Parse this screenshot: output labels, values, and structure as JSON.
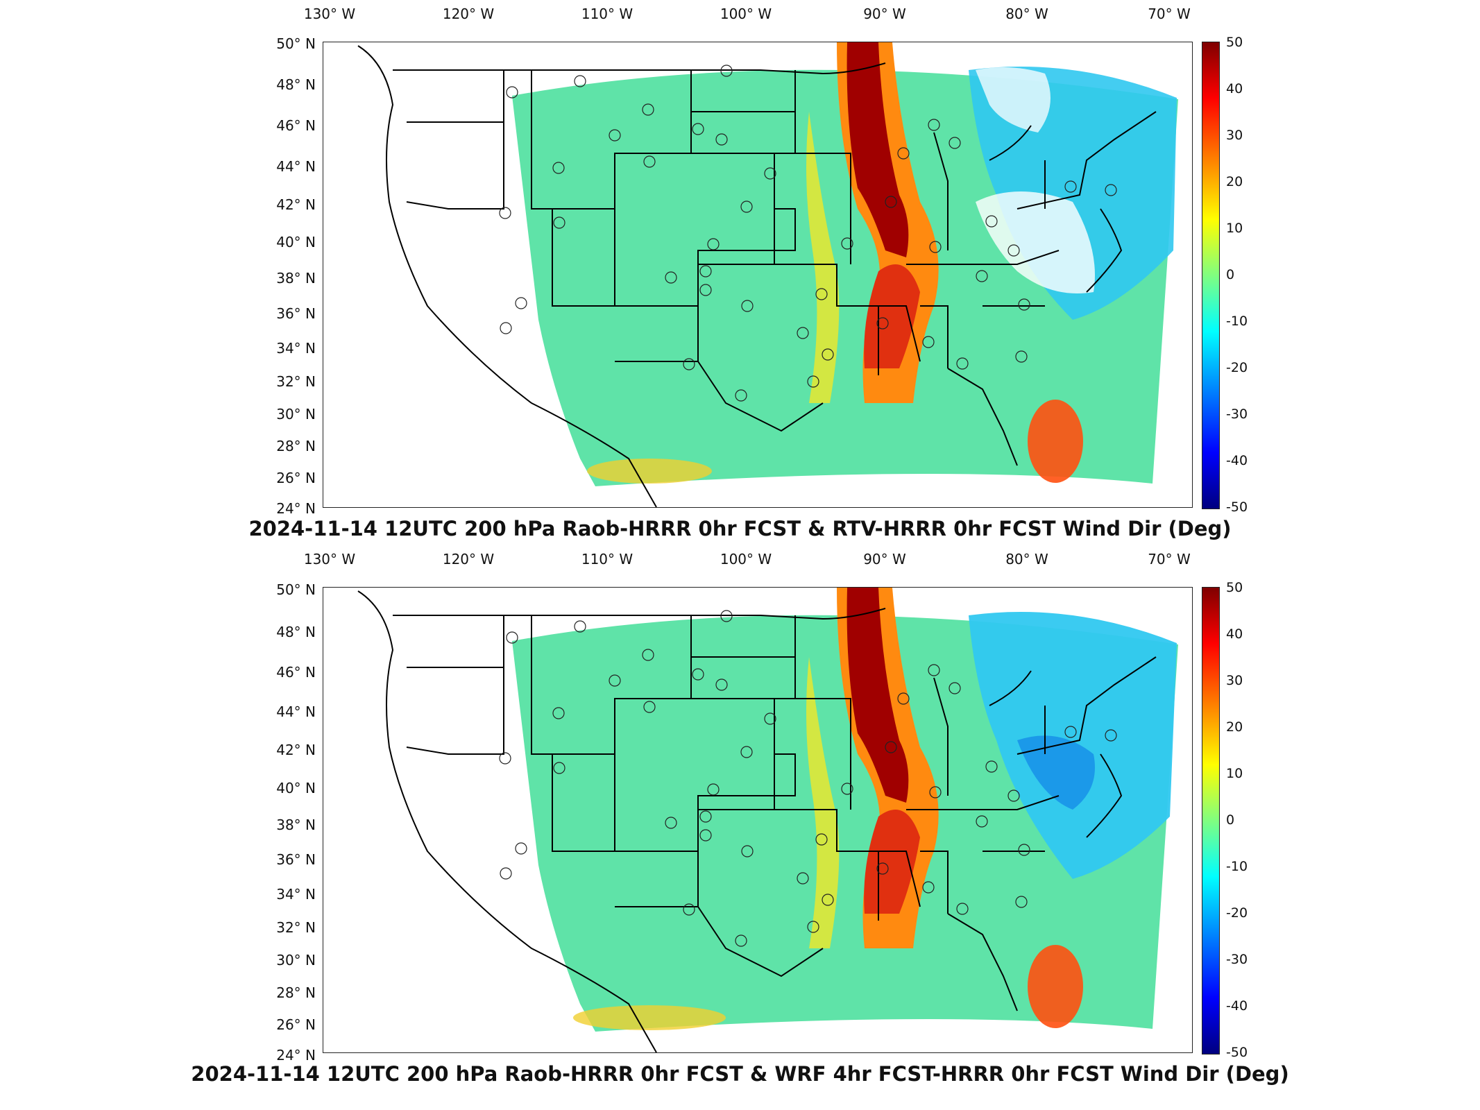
{
  "panels": [
    {
      "title": "2024-11-14 12UTC 200 hPa Raob-HRRR 0hr FCST & RTV-HRRR 0hr FCST Wind Dir (Deg)"
    },
    {
      "title": "2024-11-14 12UTC 200 hPa Raob-HRRR 0hr FCST & WRF 4hr FCST-HRRR 0hr FCST Wind Dir (Deg)"
    }
  ],
  "axes": {
    "lon_labels": [
      "130° W",
      "120° W",
      "110° W",
      "100° W",
      "90° W",
      "80° W",
      "70° W"
    ],
    "lat_labels": [
      "50° N",
      "48° N",
      "46° N",
      "44° N",
      "42° N",
      "40° N",
      "38° N",
      "36° N",
      "34° N",
      "32° N",
      "30° N",
      "28° N",
      "26° N",
      "24° N"
    ]
  },
  "colorbar": {
    "ticks": [
      "50",
      "40",
      "30",
      "20",
      "10",
      "0",
      "-10",
      "-20",
      "-30",
      "-40",
      "-50"
    ],
    "range": [
      -50,
      50
    ],
    "colormap": "jet"
  },
  "colors": {
    "land_outline": "#000000",
    "red_band": "#b00000",
    "background_field": "#5fe3a8",
    "cool_field": "#30c8f0"
  }
}
